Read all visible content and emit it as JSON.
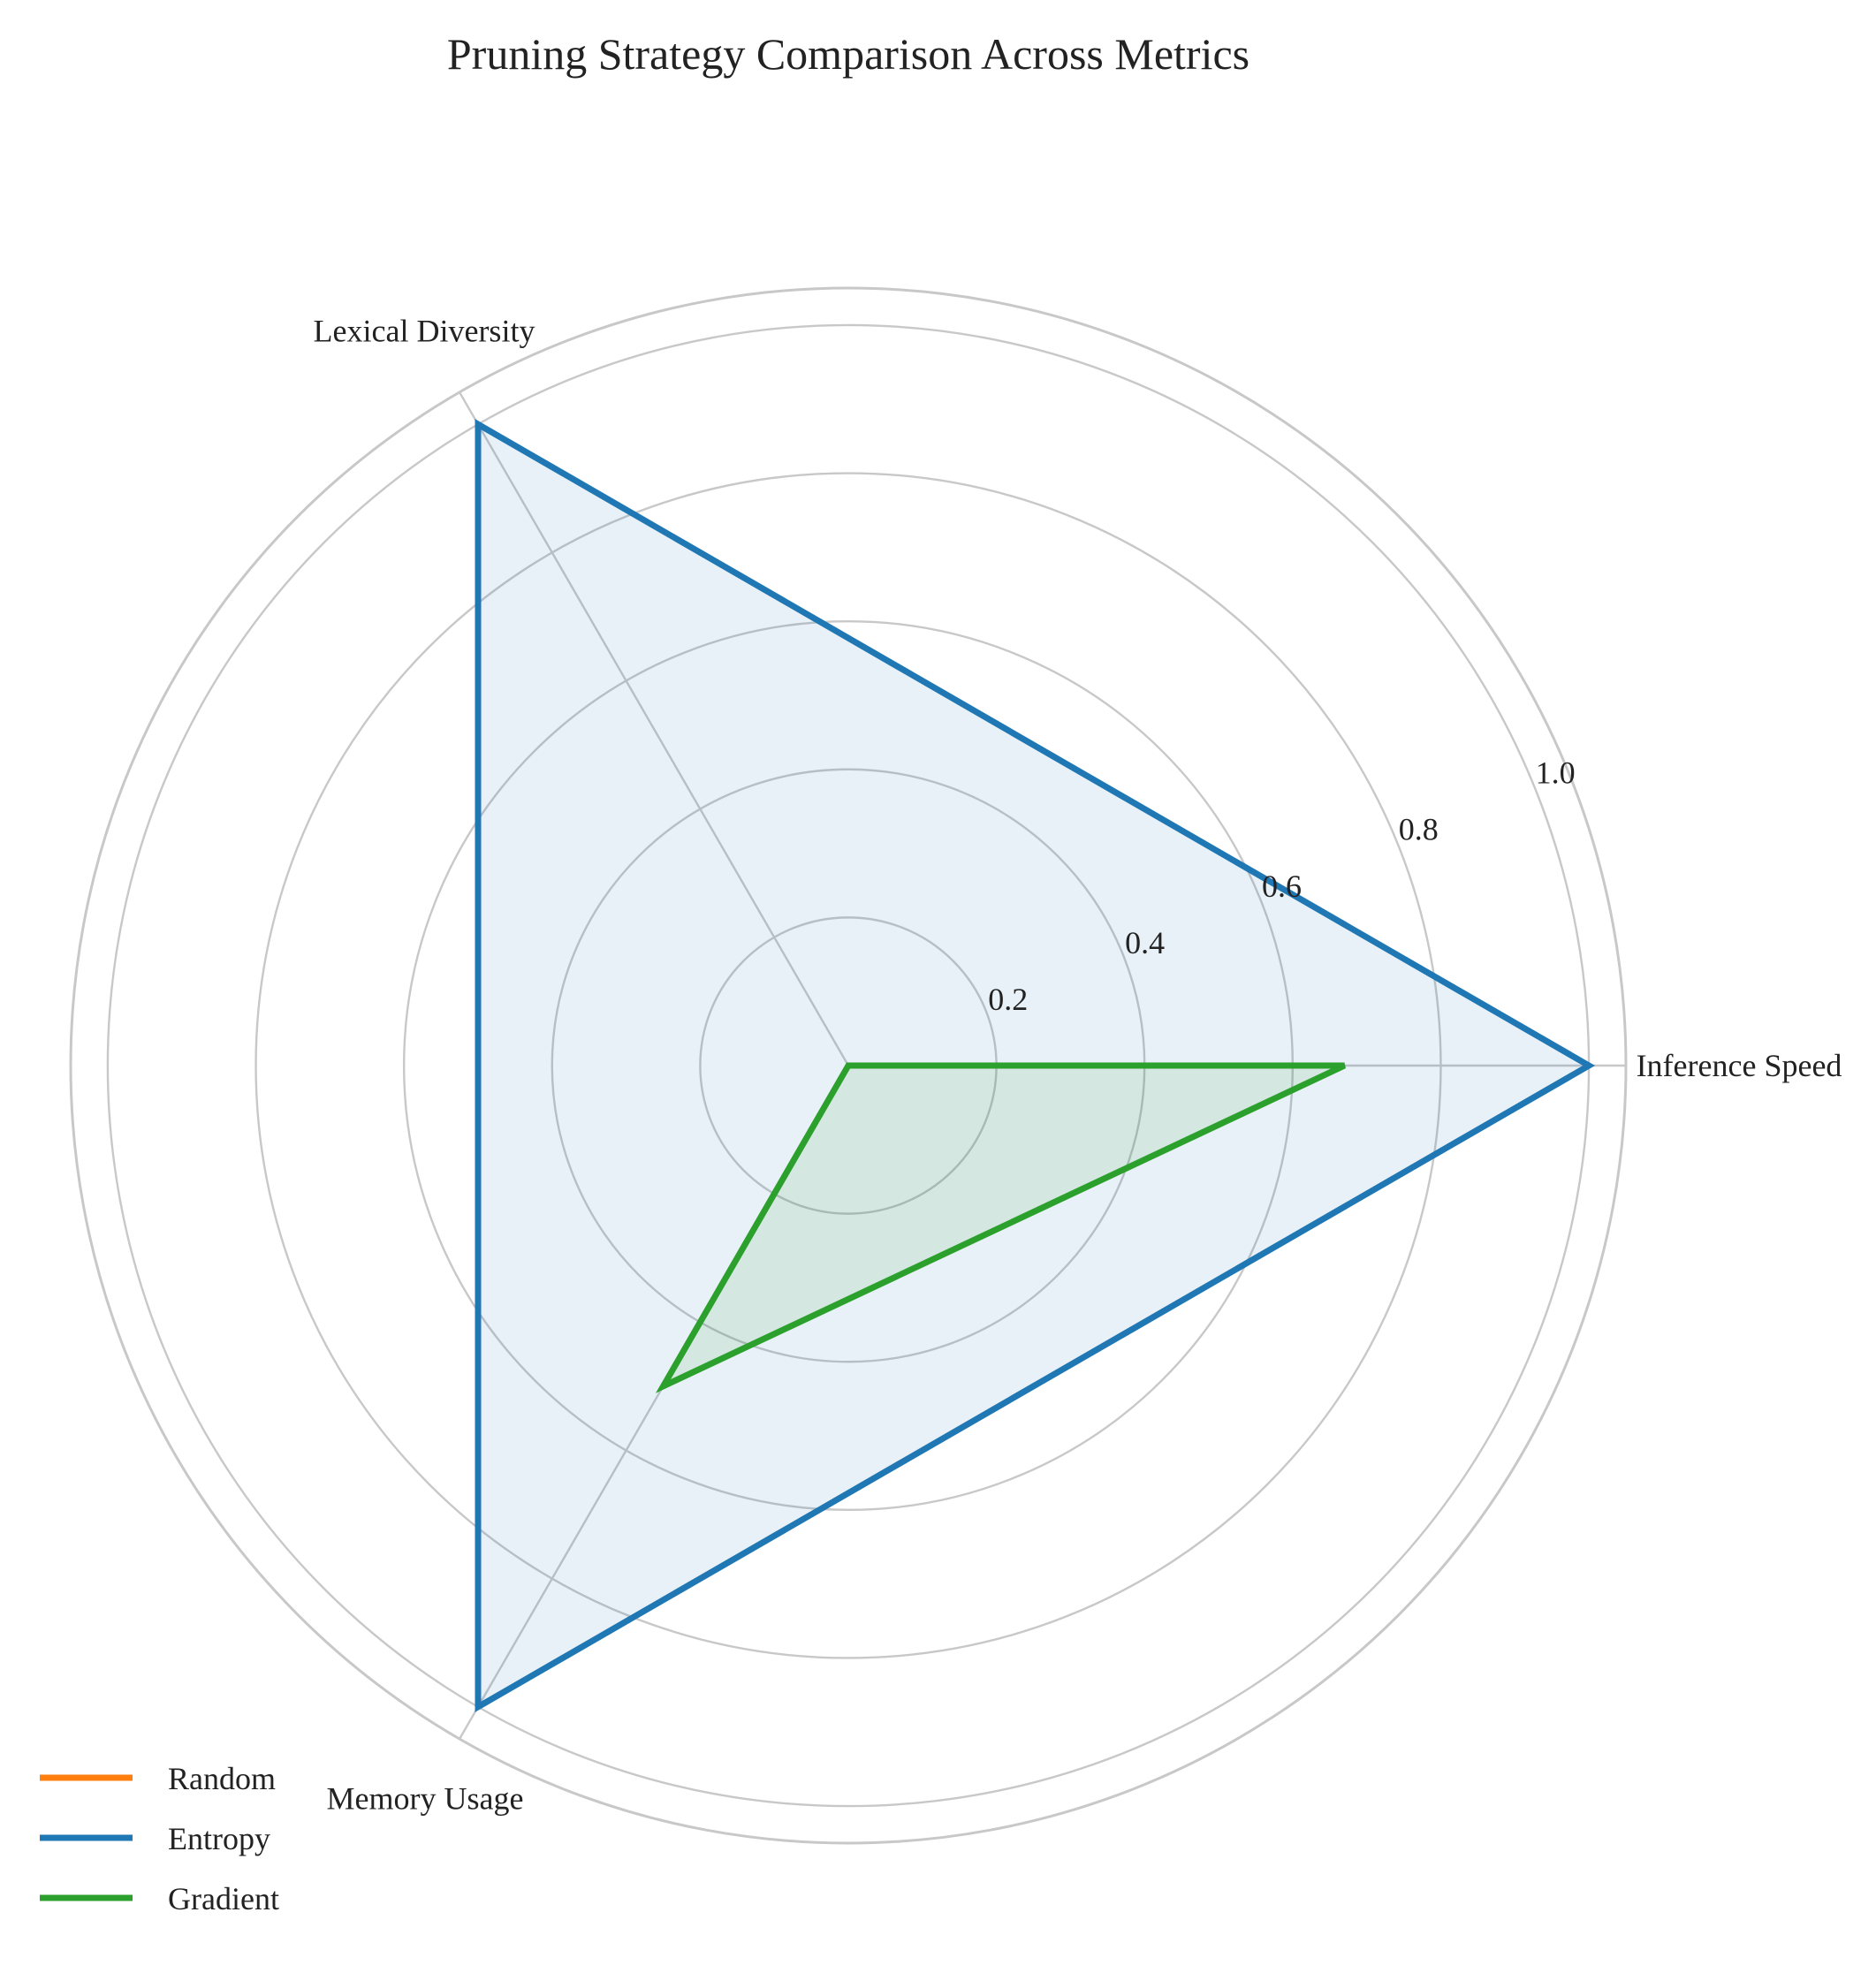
{
  "chart_data": {
    "type": "radar",
    "title": "Pruning Strategy Comparison Across Metrics",
    "axes": [
      "Inference Speed",
      "Lexical Diversity",
      "Memory Usage"
    ],
    "radial_ticks": [
      "0.2",
      "0.4",
      "0.6",
      "0.8",
      "1.0"
    ],
    "radial_tick_values": [
      0.2,
      0.4,
      0.6,
      0.8,
      1.0
    ],
    "rlim": [
      0,
      1.05
    ],
    "grid": true,
    "legend_position": "bottom-left",
    "series": [
      {
        "name": "Random",
        "color": "#ff7f0e",
        "values": [
          0,
          0,
          0
        ]
      },
      {
        "name": "Entropy",
        "color": "#1f77b4",
        "values": [
          1.0,
          1.0,
          1.0
        ]
      },
      {
        "name": "Gradient",
        "color": "#2ca02c",
        "values": [
          0.67,
          0.0,
          0.5
        ]
      }
    ]
  }
}
